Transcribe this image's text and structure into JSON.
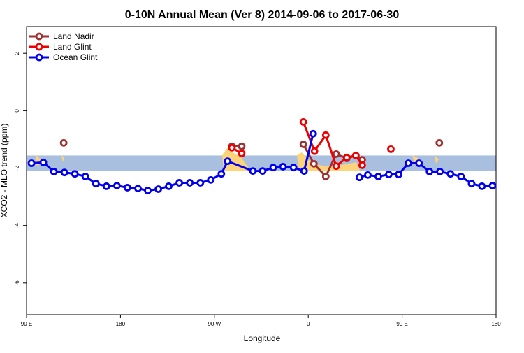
{
  "chart_data": {
    "type": "line",
    "title": "0-10N Annual Mean (Ver 8)   2014-09-06 to 2017-06-30",
    "x_label": "Longitude",
    "y_label": "XCO2 - MLO trend (ppm)",
    "xlim": [
      90,
      540
    ],
    "ylim": [
      -7.1,
      2.93
    ],
    "xticks": [
      {
        "value": 90,
        "label": "90 E"
      },
      {
        "value": 180,
        "label": "180"
      },
      {
        "value": 270,
        "label": "90 W"
      },
      {
        "value": 360,
        "label": "0"
      },
      {
        "value": 450,
        "label": "90 E"
      },
      {
        "value": 540,
        "label": "180"
      }
    ],
    "yticks": [
      2,
      0,
      -2,
      -4,
      -6
    ],
    "band": [
      -2.1,
      -1.56
    ],
    "band_color": "#a9bfdf",
    "legend": "top-left",
    "series": [
      {
        "name": "Land Nadir",
        "color": "#a03030",
        "x": [
          125.6,
          null,
          286.8,
          296.2,
          null,
          355.3,
          365.4,
          376.8,
          386.8,
          396.9,
          405.6,
          411.7,
          null,
          485.6
        ],
        "values": [
          -1.12,
          null,
          -1.24,
          -1.24,
          null,
          -1.17,
          -1.85,
          -2.29,
          -1.51,
          -1.66,
          -1.56,
          -1.71,
          null,
          -1.12
        ]
      },
      {
        "name": "Land Glint",
        "color": "#ee0000",
        "x": [
          286.8,
          296.2,
          null,
          355.3,
          366.0,
          376.8,
          386.8,
          396.9,
          405.6,
          411.7,
          null,
          439.2
        ],
        "values": [
          -1.29,
          -1.49,
          null,
          -0.39,
          -1.41,
          -0.85,
          -1.93,
          -1.63,
          -1.56,
          -1.9,
          null,
          -1.34
        ]
      },
      {
        "name": "Ocean Glint",
        "color": "#0000ee",
        "x": [
          94.7,
          106.1,
          116.2,
          126.3,
          136.3,
          146.4,
          156.5,
          166.6,
          176.6,
          186.7,
          196.8,
          206.2,
          216.3,
          226.3,
          236.4,
          246.5,
          256.6,
          266.6,
          276.7,
          282.7,
          306.9,
          316.3,
          326.4,
          335.8,
          345.9,
          356.0,
          364.7,
          null,
          409.0,
          417.1,
          427.1,
          437.2,
          446.6,
          456.0,
          466.1,
          476.2,
          486.2,
          496.3,
          506.4,
          516.5,
          526.5,
          536.6
        ],
        "values": [
          -1.83,
          -1.8,
          -2.12,
          -2.15,
          -2.2,
          -2.29,
          -2.54,
          -2.63,
          -2.61,
          -2.68,
          -2.71,
          -2.78,
          -2.73,
          -2.63,
          -2.51,
          -2.51,
          -2.51,
          -2.41,
          -2.2,
          -1.76,
          -2.1,
          -2.1,
          -1.98,
          -1.95,
          -1.98,
          -2.1,
          -0.8,
          null,
          -2.32,
          -2.24,
          -2.29,
          -2.22,
          -2.22,
          -1.83,
          -1.83,
          -2.12,
          -2.12,
          -2.2,
          -2.29,
          -2.54,
          -2.63,
          -2.61
        ]
      }
    ]
  }
}
